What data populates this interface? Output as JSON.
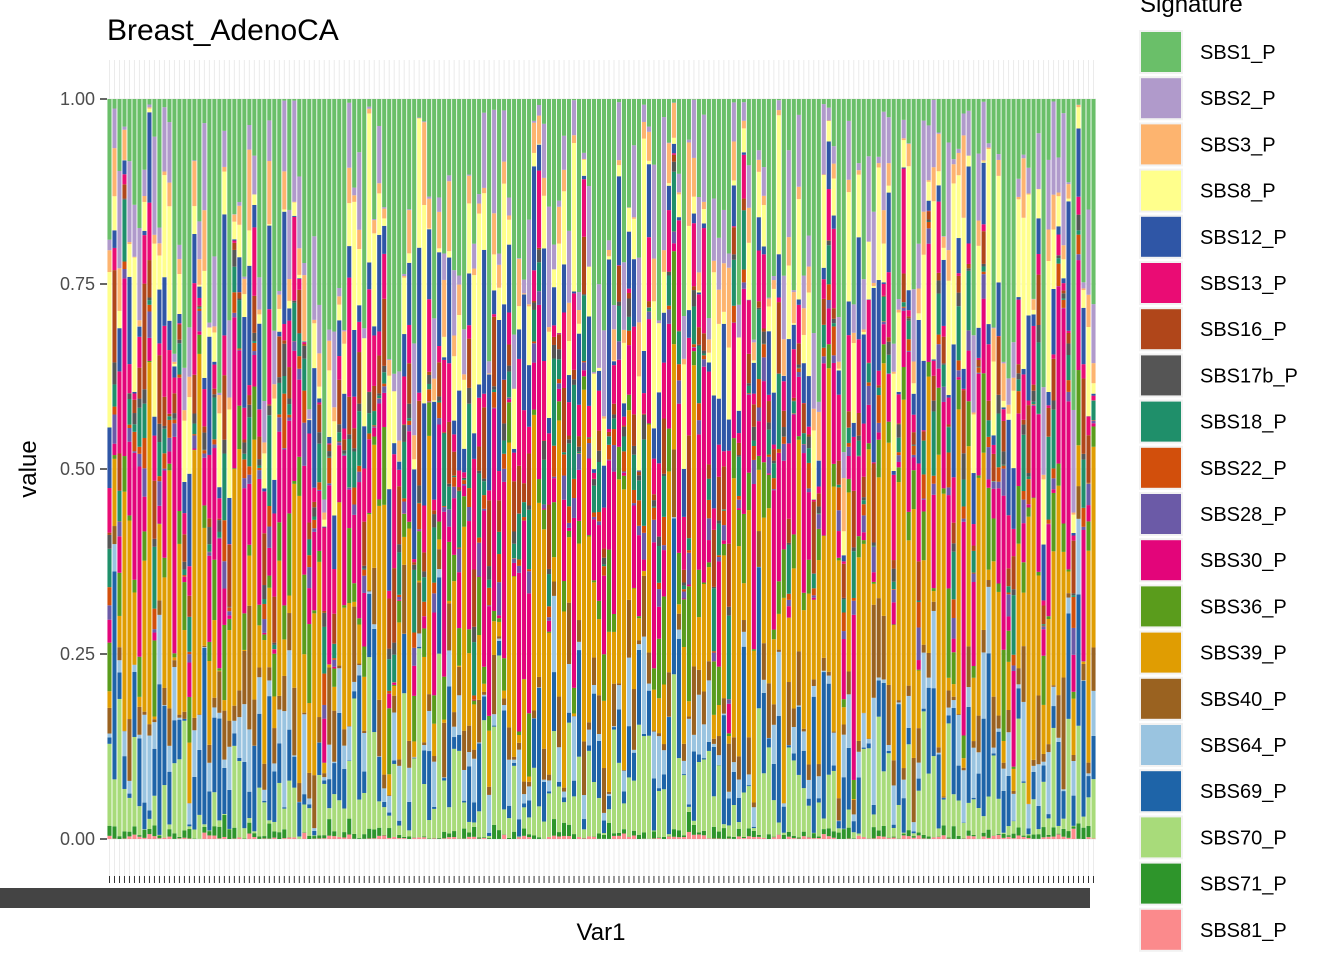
{
  "chart_data": {
    "type": "bar",
    "stacked": true,
    "title": "Breast_AdenoCA",
    "xlabel": "Var1",
    "ylabel": "value",
    "ylim": [
      0,
      1
    ],
    "y_ticks": [
      "0.00",
      "0.25",
      "0.50",
      "0.75",
      "1.00"
    ],
    "sample_count": 198,
    "legend_title": "Signature",
    "legend_position": "right",
    "panel_background": "#ffffff",
    "grid_color": "#ebebeb",
    "signatures": [
      {
        "name": "SBS1_P",
        "color": "#6ABF69",
        "mean": 0.15
      },
      {
        "name": "SBS2_P",
        "color": "#B09ACB",
        "mean": 0.05
      },
      {
        "name": "SBS3_P",
        "color": "#FDB46F",
        "mean": 0.025
      },
      {
        "name": "SBS8_P",
        "color": "#FFFF8C",
        "mean": 0.07
      },
      {
        "name": "SBS12_P",
        "color": "#2F56A6",
        "mean": 0.06
      },
      {
        "name": "SBS13_P",
        "color": "#EA0C74",
        "mean": 0.045
      },
      {
        "name": "SBS16_P",
        "color": "#B0461A",
        "mean": 0.03
      },
      {
        "name": "SBS17b_P",
        "color": "#555555",
        "mean": 0.008
      },
      {
        "name": "SBS18_P",
        "color": "#1F8F6A",
        "mean": 0.035
      },
      {
        "name": "SBS22_P",
        "color": "#D24F0C",
        "mean": 0.012
      },
      {
        "name": "SBS28_P",
        "color": "#6B5AA7",
        "mean": 0.012
      },
      {
        "name": "SBS30_P",
        "color": "#E3057A",
        "mean": 0.09
      },
      {
        "name": "SBS36_P",
        "color": "#5A9C1C",
        "mean": 0.035
      },
      {
        "name": "SBS39_P",
        "color": "#E09D02",
        "mean": 0.18
      },
      {
        "name": "SBS40_P",
        "color": "#9A6220",
        "mean": 0.035
      },
      {
        "name": "SBS64_P",
        "color": "#9AC4E0",
        "mean": 0.03
      },
      {
        "name": "SBS69_P",
        "color": "#1E64A8",
        "mean": 0.06
      },
      {
        "name": "SBS70_P",
        "color": "#A8DB7A",
        "mean": 0.06
      },
      {
        "name": "SBS71_P",
        "color": "#2E952B",
        "mean": 0.006
      },
      {
        "name": "SBS81_P",
        "color": "#FB8A8C",
        "mean": 0.002
      }
    ]
  }
}
